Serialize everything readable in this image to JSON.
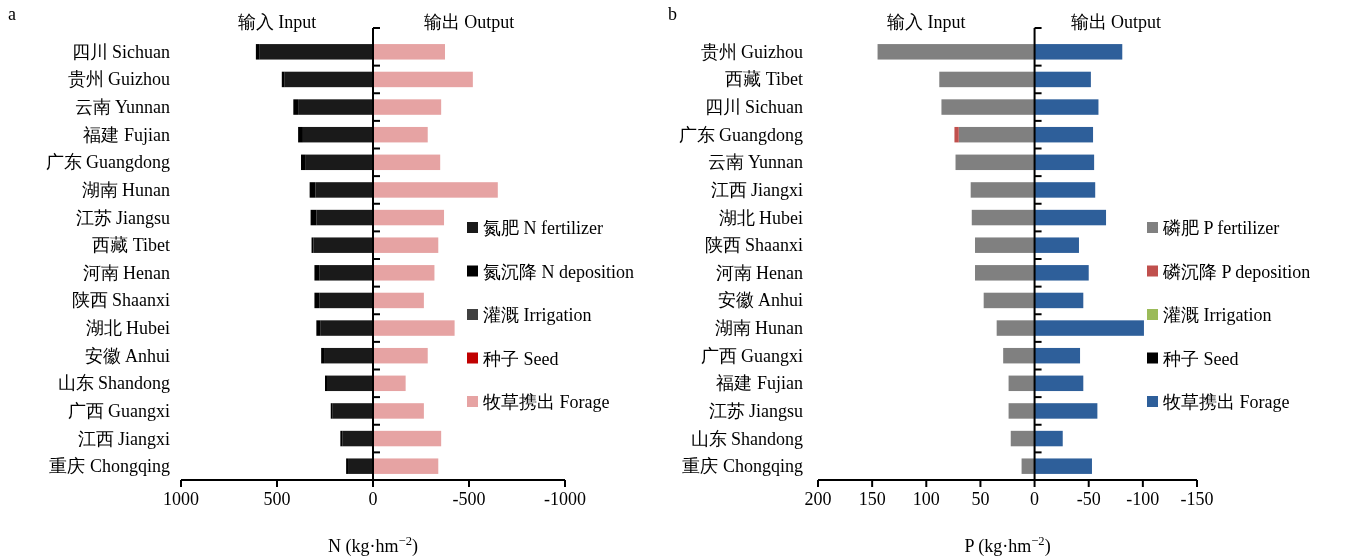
{
  "chart_data": [
    {
      "type": "bar",
      "orientation": "horizontal",
      "stacked": true,
      "legend": "right",
      "xlabel": "N (kg·hm$^{−2}$)",
      "annotations": [
        "a",
        "输入 Input",
        "输出 Output"
      ],
      "categories": [
        "四川 Sichuan",
        "贵州 Guizhou",
        "云南 Yunnan",
        "福建 Fujian",
        "广东 Guangdong",
        "湖南 Hunan",
        "江苏 Jiangsu",
        "西藏 Tibet",
        "河南 Henan",
        "陕西 Shaanxi",
        "湖北 Hubei",
        "安徽 Anhui",
        "山东 Shandong",
        "广西 Guangxi",
        "江西 Jiangxi",
        "重庆 Chongqing"
      ],
      "xlim": [
        1000,
        -1000
      ],
      "xticks": [
        1000,
        500,
        0,
        -500,
        -1000
      ],
      "series": [
        {
          "name": "氮肥 N fertilizer",
          "color": "#1a1a1a",
          "values": [
            590,
            460,
            390,
            365,
            350,
            300,
            295,
            310,
            280,
            280,
            275,
            255,
            235,
            210,
            160,
            130
          ]
        },
        {
          "name": "氮沉降 N deposition",
          "color": "#000000",
          "values": [
            20,
            15,
            25,
            25,
            25,
            30,
            30,
            10,
            25,
            25,
            20,
            15,
            15,
            10,
            10,
            10
          ]
        },
        {
          "name": "灌溉 Irrigation",
          "color": "#404040",
          "values": [
            0,
            0,
            0,
            0,
            0,
            0,
            0,
            0,
            0,
            0,
            0,
            0,
            0,
            0,
            0,
            0
          ]
        },
        {
          "name": "种子 Seed",
          "color": "#c00000",
          "values": [
            0,
            0,
            0,
            0,
            0,
            0,
            0,
            0,
            0,
            0,
            0,
            0,
            0,
            0,
            0,
            0
          ]
        },
        {
          "name": "牧草携出 Forage",
          "color": "#e6a3a3",
          "values": [
            -375,
            -520,
            -355,
            -285,
            -350,
            -650,
            -370,
            -340,
            -320,
            -265,
            -425,
            -285,
            -170,
            -265,
            -355,
            -340
          ]
        }
      ]
    },
    {
      "type": "bar",
      "orientation": "horizontal",
      "stacked": true,
      "legend": "right",
      "xlabel": "P (kg·hm$^{−2}$)",
      "annotations": [
        "b",
        "输入 Input",
        "输出 Output"
      ],
      "categories": [
        "贵州 Guizhou",
        "西藏 Tibet",
        "四川 Sichuan",
        "广东 Guangdong",
        "云南 Yunnan",
        "江西 Jiangxi",
        "湖北 Hubei",
        "陕西 Shaanxi",
        "河南 Henan",
        "安徽 Anhui",
        "湖南 Hunan",
        "广西 Guangxi",
        "福建 Fujian",
        "江苏 Jiangsu",
        "山东 Shandong",
        "重庆 Chongqing"
      ],
      "xlim": [
        200,
        -150
      ],
      "xticks": [
        200,
        150,
        100,
        50,
        0,
        -50,
        -100,
        -150
      ],
      "series": [
        {
          "name": "磷肥 P fertilizer",
          "color": "#808080",
          "values": [
            145,
            88,
            86,
            70,
            73,
            59,
            58,
            55,
            55,
            47,
            35,
            29,
            24,
            24,
            22,
            12
          ]
        },
        {
          "name": "磷沉降 P deposition",
          "color": "#c0504d",
          "values": [
            0,
            0,
            0,
            4,
            0,
            0,
            0,
            0,
            0,
            0,
            0,
            0,
            0,
            0,
            0,
            0
          ]
        },
        {
          "name": "灌溉 Irrigation",
          "color": "#9bbb59",
          "values": [
            0,
            0,
            0,
            0,
            0,
            0,
            0,
            0,
            0,
            0,
            0,
            0,
            0,
            0,
            0,
            0
          ]
        },
        {
          "name": "种子 Seed",
          "color": "#000000",
          "values": [
            0,
            0,
            0,
            0,
            0,
            0,
            0,
            0,
            0,
            0,
            0,
            0,
            0,
            0,
            0,
            0
          ]
        },
        {
          "name": "牧草携出 Forage",
          "color": "#2e5f9a",
          "values": [
            -81,
            -52,
            -59,
            -54,
            -55,
            -56,
            -66,
            -41,
            -50,
            -45,
            -101,
            -42,
            -45,
            -58,
            -26,
            -53
          ]
        }
      ]
    }
  ]
}
